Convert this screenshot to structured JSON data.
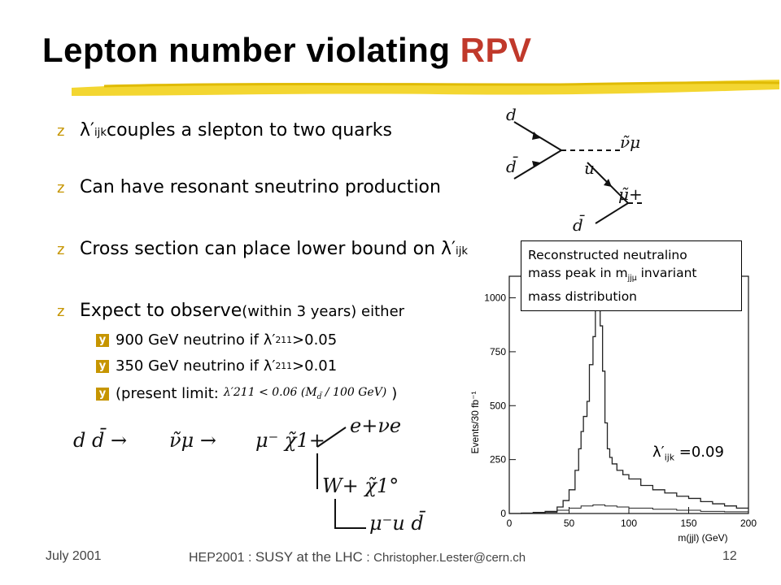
{
  "slide": {
    "title_main": "Lepton number violating ",
    "title_accent": "RPV",
    "accent_color": "#c0392b",
    "bullet_color": "#c69500"
  },
  "bullets": [
    {
      "mark": "z",
      "pre": "λ′",
      "sub": "ijk",
      "text": " couples a slepton to two quarks"
    },
    {
      "mark": "z",
      "text": "Can have resonant sneutrino production"
    },
    {
      "mark": "z",
      "text": "Cross section can place lower bound on λ′",
      "sub": "ijk"
    },
    {
      "mark": "z",
      "text": "Expect to observe ",
      "small": "(within 3 years) either"
    }
  ],
  "sub_bullets": [
    {
      "mark": "y",
      "pre": "900 GeV neutrino if λ′",
      "sub": "211",
      "post": ">0.05"
    },
    {
      "mark": "y",
      "pre": "350 GeV neutrino if λ′",
      "sub": "211",
      "post": ">0.01"
    },
    {
      "mark": "y",
      "pre": "(present limit:",
      "formula_a": "λ′211",
      "formula_b": "< 0.06 (M",
      "formula_c": "/ 100 GeV)",
      "post": ")"
    }
  ],
  "infobox": {
    "line1": "Reconstructed neutralino",
    "line2_pre": "mass peak in m",
    "line2_sub": "jjμ",
    "line2_post": " invariant",
    "line3": "mass distribution"
  },
  "lambda_label": {
    "pre": "λ′",
    "sub": "ijk",
    "post": " =0.09"
  },
  "feynman": {
    "d": "d",
    "dbar": "d̄",
    "snu": "ν̃μ",
    "u": "u",
    "dbar2": "d̄",
    "smu": "μ̃+"
  },
  "decay_chain": {
    "step1": "d d̄ →",
    "step2": "ν̃μ →",
    "step3": "μ⁻ χ̃1+",
    "step4": "e+νe",
    "step5": "W+ χ̃1°",
    "step6": "μ⁻u d̄"
  },
  "chart_data": {
    "type": "line",
    "xlabel": "m(jjl) (GeV)",
    "ylabel": "Events/30 fb⁻¹",
    "xlim": [
      0,
      200
    ],
    "ylim": [
      0,
      1100
    ],
    "x_ticks": [
      0,
      50,
      100,
      150,
      200
    ],
    "y_ticks": [
      0,
      250,
      500,
      750,
      1000
    ],
    "series": [
      {
        "x": [
          0,
          10,
          20,
          30,
          40,
          45,
          50,
          55,
          58,
          60,
          62,
          65,
          67,
          70,
          72,
          74,
          76,
          78,
          80,
          82,
          84,
          86,
          90,
          95,
          100,
          110,
          120,
          130,
          140,
          150,
          160,
          170,
          180,
          190,
          200
        ],
        "values": [
          0,
          2,
          5,
          10,
          30,
          60,
          110,
          200,
          300,
          380,
          450,
          520,
          690,
          820,
          960,
          980,
          870,
          660,
          420,
          300,
          260,
          230,
          200,
          180,
          160,
          130,
          110,
          95,
          80,
          70,
          55,
          45,
          35,
          25,
          20
        ]
      },
      {
        "x": [
          0,
          20,
          40,
          50,
          60,
          70,
          80,
          90,
          100,
          120,
          140,
          160,
          180,
          200
        ],
        "values": [
          0,
          5,
          15,
          25,
          35,
          40,
          35,
          30,
          25,
          20,
          15,
          10,
          8,
          5
        ]
      }
    ]
  },
  "footer": {
    "date": "July 2001",
    "conf": "HEP2001",
    "sep1": " : ",
    "talk": "SUSY at the LHC",
    "sep2": " : ",
    "email": "Christopher.Lester@cern.ch",
    "page": "12"
  }
}
